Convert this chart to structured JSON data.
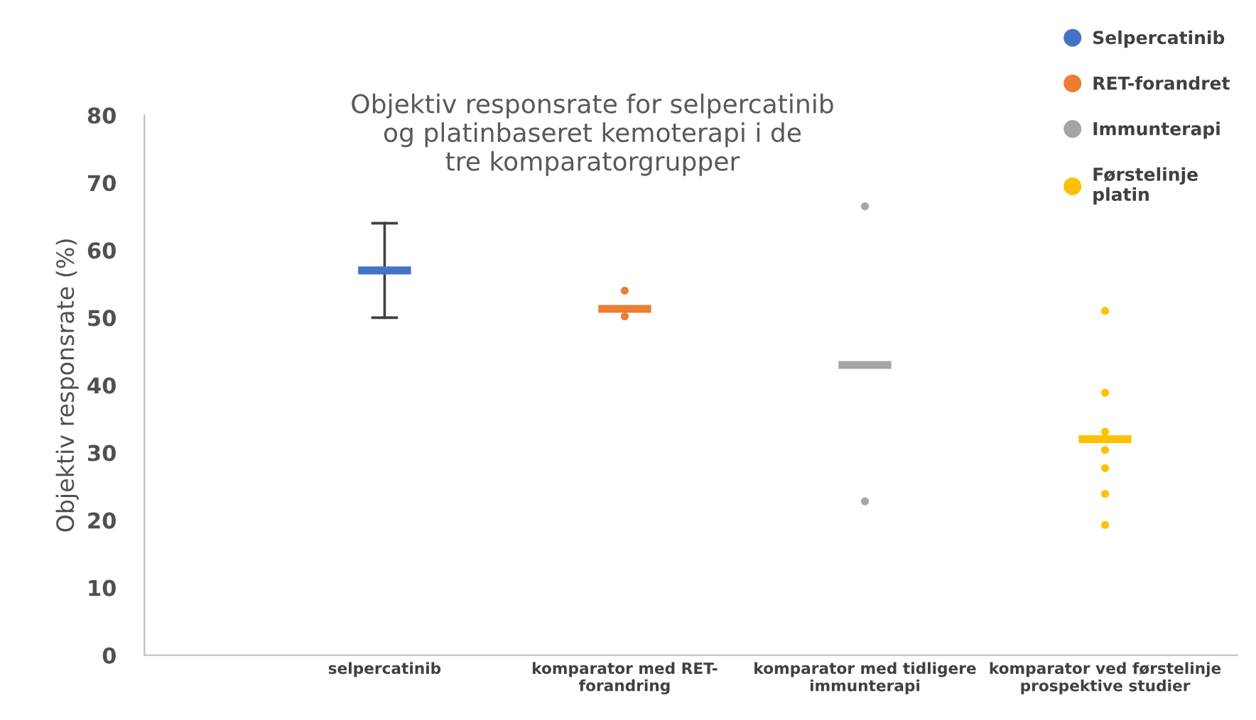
{
  "chart_data": {
    "type": "box",
    "title": "Objektiv responsrate for selpercatinib\nog platinbaseret kemoterapi i de\ntre komparatorgrupper",
    "ylabel": "Objektiv responsrate (%)",
    "categories": [
      "selpercatinib",
      "komparator med RET-\nforandring",
      "komparator med tidligere\nimmunterapi",
      "komparator ved førstelinje\nprospektive studier"
    ],
    "series": [
      {
        "name": "Selpercatinib",
        "color": "#4472c4",
        "boxes": [
          {
            "low": 50,
            "q1": 57,
            "median": 57,
            "q3": 57,
            "high": 64
          },
          null,
          null,
          null
        ]
      },
      {
        "name": "RET-forandret",
        "color": "#ed7d31",
        "boxes": [
          null,
          {
            "low": 51.3,
            "q1": 51.3,
            "median": 51.3,
            "q3": 51.3,
            "high": 51.3
          },
          null,
          null
        ]
      },
      {
        "name": "Immunterapi",
        "color": "#a5a5a5",
        "boxes": [
          null,
          null,
          {
            "low": 43,
            "q1": 43,
            "median": 43,
            "q3": 43,
            "high": 43
          },
          null
        ]
      },
      {
        "name": "Førstelinje\nplatin",
        "color": "#ffc000",
        "boxes": [
          null,
          null,
          null,
          {
            "low": 32,
            "q1": 32,
            "median": 32,
            "q3": 32,
            "high": 32
          }
        ]
      },
      {
        "type": "scatter",
        "color": "#ed7d31",
        "marker": "circle",
        "x": [
          "komparator med RET-\nforandring",
          "komparator med RET-\nforandring"
        ],
        "values": [
          54,
          50.2
        ]
      },
      {
        "type": "scatter",
        "color": "#a5a5a5",
        "marker": "circle",
        "x": [
          "komparator med tidligere\nimmunterapi",
          "komparator med tidligere\nimmunterapi"
        ],
        "values": [
          66.5,
          22.8
        ]
      },
      {
        "type": "scatter",
        "color": "#ffc000",
        "marker": "circle",
        "x": [
          "komparator ved førstelinje\nprospektive studier",
          "komparator ved førstelinje\nprospektive studier",
          "komparator ved førstelinje\nprospektive studier",
          "komparator ved førstelinje\nprospektive studier",
          "komparator ved førstelinje\nprospektive studier",
          "komparator ved førstelinje\nprospektive studier",
          "komparator ved førstelinje\nprospektive studier"
        ],
        "values": [
          51,
          38.9,
          33.1,
          30.4,
          27.7,
          23.9,
          19.3
        ]
      }
    ],
    "ylim": [
      0,
      80
    ],
    "yticks": [
      0,
      10,
      20,
      30,
      40,
      50,
      60,
      70,
      80
    ],
    "grid": false,
    "legend": "top right"
  }
}
